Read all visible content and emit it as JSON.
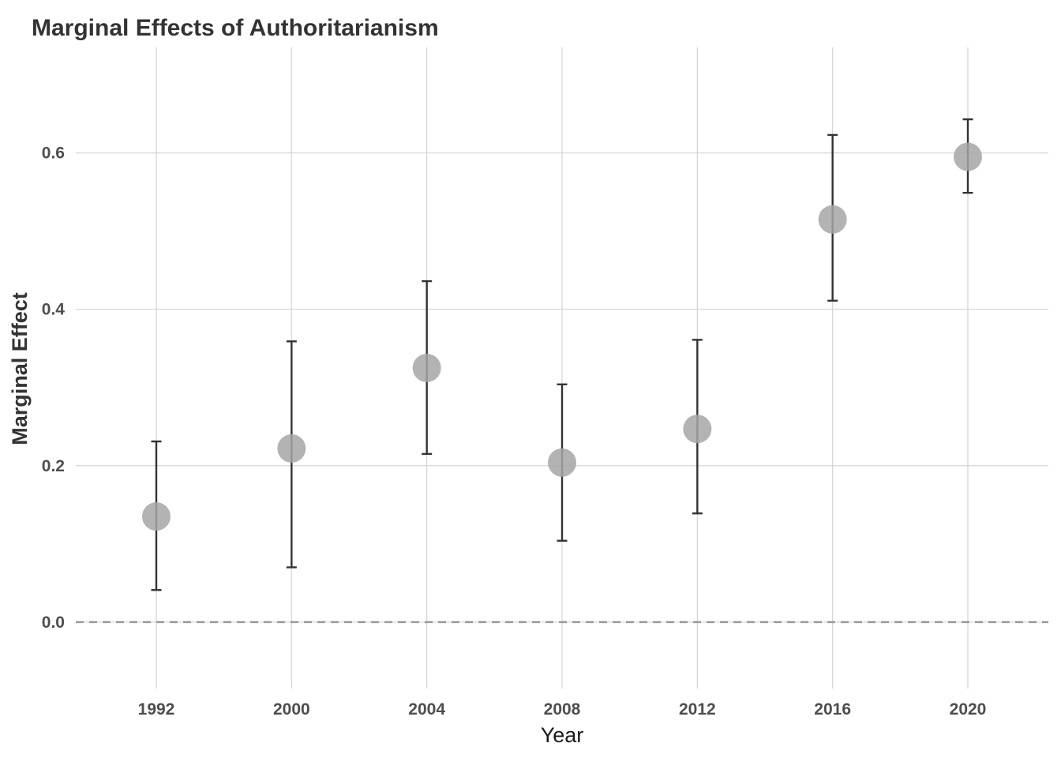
{
  "chart_data": {
    "type": "scatter",
    "title": "Marginal Effects of Authoritarianism",
    "xlabel": "Year",
    "ylabel": "Marginal Effect",
    "categories": [
      "1992",
      "2000",
      "2004",
      "2008",
      "2012",
      "2016",
      "2020"
    ],
    "values": [
      0.135,
      0.222,
      0.325,
      0.204,
      0.247,
      0.515,
      0.595
    ],
    "lower": [
      0.041,
      0.07,
      0.215,
      0.104,
      0.139,
      0.411,
      0.549
    ],
    "upper": [
      0.231,
      0.359,
      0.436,
      0.304,
      0.361,
      0.623,
      0.643
    ],
    "y_ticks": [
      "0.0",
      "0.2",
      "0.4",
      "0.6"
    ],
    "ylim": [
      -0.085,
      0.735
    ],
    "reference_line": 0,
    "grid": true,
    "colors": {
      "point": "#a6a6a6",
      "errorbar": "#333333",
      "grid": "#d4d4d4",
      "reference": "#999999"
    }
  }
}
